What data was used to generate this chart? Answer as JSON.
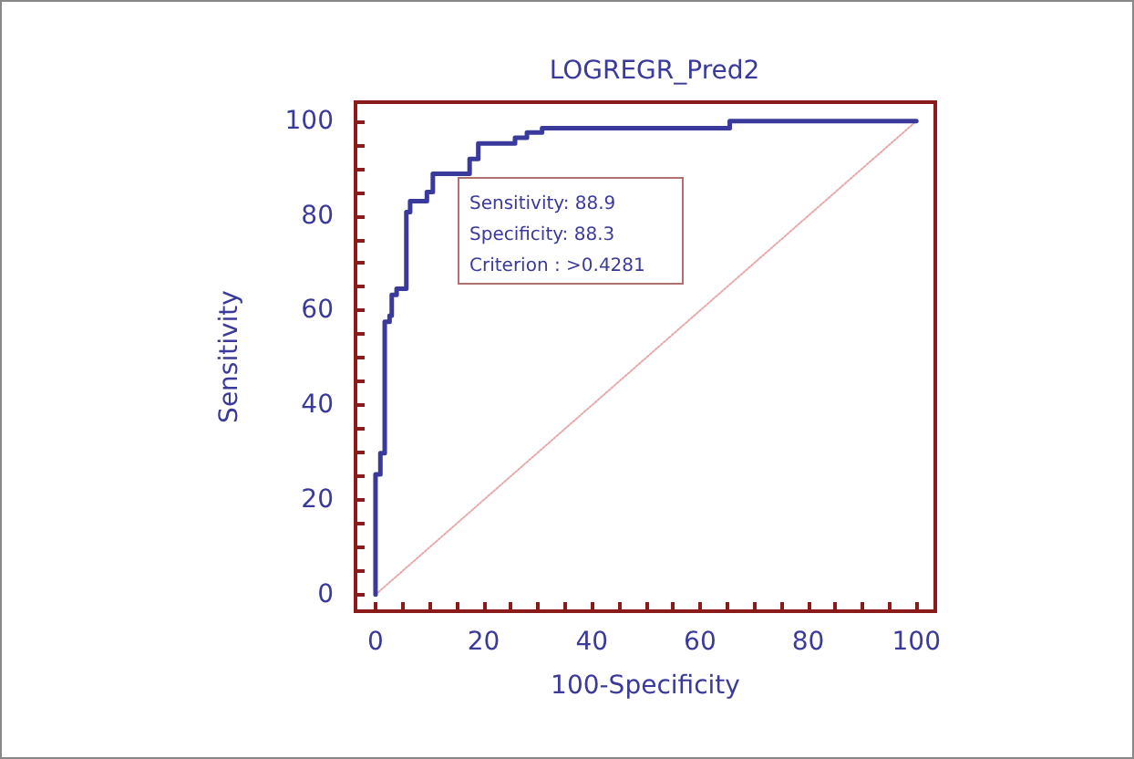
{
  "chart_data": {
    "type": "line",
    "title": "LOGREGR_Pred2",
    "xlabel": "100-Specificity",
    "ylabel": "Sensitivity",
    "annotations": [
      "Sensitivity: 88.9",
      "Specificity: 88.3",
      "Criterion : >0.4281"
    ],
    "series": [
      {
        "color": "#3a3a9c",
        "x": [
          0,
          0,
          0.9,
          0.9,
          1.7,
          1.7,
          2.6,
          2.6,
          3.0,
          3.0,
          3.9,
          3.9,
          5.7,
          5.7,
          6.4,
          6.4,
          9.5,
          9.5,
          10.6,
          10.6,
          17.4,
          17.4,
          19.0,
          19.0,
          25.8,
          25.8,
          28,
          28,
          30.8,
          30.8,
          65.5,
          65.5,
          100
        ],
        "values": [
          0,
          25.4,
          25.4,
          29.9,
          29.9,
          57.6,
          57.6,
          58.9,
          58.9,
          63.3,
          63.3,
          64.6,
          64.6,
          80.8,
          80.8,
          83.1,
          83.1,
          85,
          85,
          88.9,
          88.9,
          92,
          92,
          95.3,
          95.3,
          96.5,
          96.5,
          97.6,
          97.6,
          98.5,
          98.5,
          100,
          100
        ]
      },
      {
        "color": "#e8a8a8",
        "line_style": "dotted",
        "x": [
          0,
          100
        ],
        "values": [
          0,
          100
        ]
      }
    ],
    "xlim": [
      -3.7,
      103.5
    ],
    "ylim": [
      -3.5,
      104
    ],
    "xticks": [
      0,
      {
        "value": 5,
        "label": null
      },
      {
        "value": 10,
        "label": null
      },
      {
        "value": 15,
        "label": null
      },
      20,
      {
        "value": 25,
        "label": null
      },
      {
        "value": 30,
        "label": null
      },
      {
        "value": 35,
        "label": null
      },
      40,
      {
        "value": 45,
        "label": null
      },
      {
        "value": 50,
        "label": null
      },
      {
        "value": 55,
        "label": null
      },
      60,
      {
        "value": 65,
        "label": null
      },
      {
        "value": 70,
        "label": null
      },
      {
        "value": 75,
        "label": null
      },
      80,
      {
        "value": 85,
        "label": null
      },
      {
        "value": 90,
        "label": null
      },
      {
        "value": 95,
        "label": null
      },
      100
    ],
    "yticks": [
      0,
      {
        "value": 5,
        "label": null
      },
      {
        "value": 10,
        "label": null
      },
      {
        "value": 15,
        "label": null
      },
      20,
      {
        "value": 25,
        "label": null
      },
      {
        "value": 30,
        "label": null
      },
      {
        "value": 35,
        "label": null
      },
      40,
      {
        "value": 45,
        "label": null
      },
      {
        "value": 50,
        "label": null
      },
      {
        "value": 55,
        "label": null
      },
      60,
      {
        "value": 65,
        "label": null
      },
      {
        "value": 70,
        "label": null
      },
      {
        "value": 75,
        "label": null
      },
      80,
      {
        "value": 85,
        "label": null
      },
      {
        "value": 90,
        "label": null
      },
      {
        "value": 95,
        "label": null
      },
      100
    ],
    "grid": false,
    "marker": "none",
    "line_style": "solid"
  }
}
